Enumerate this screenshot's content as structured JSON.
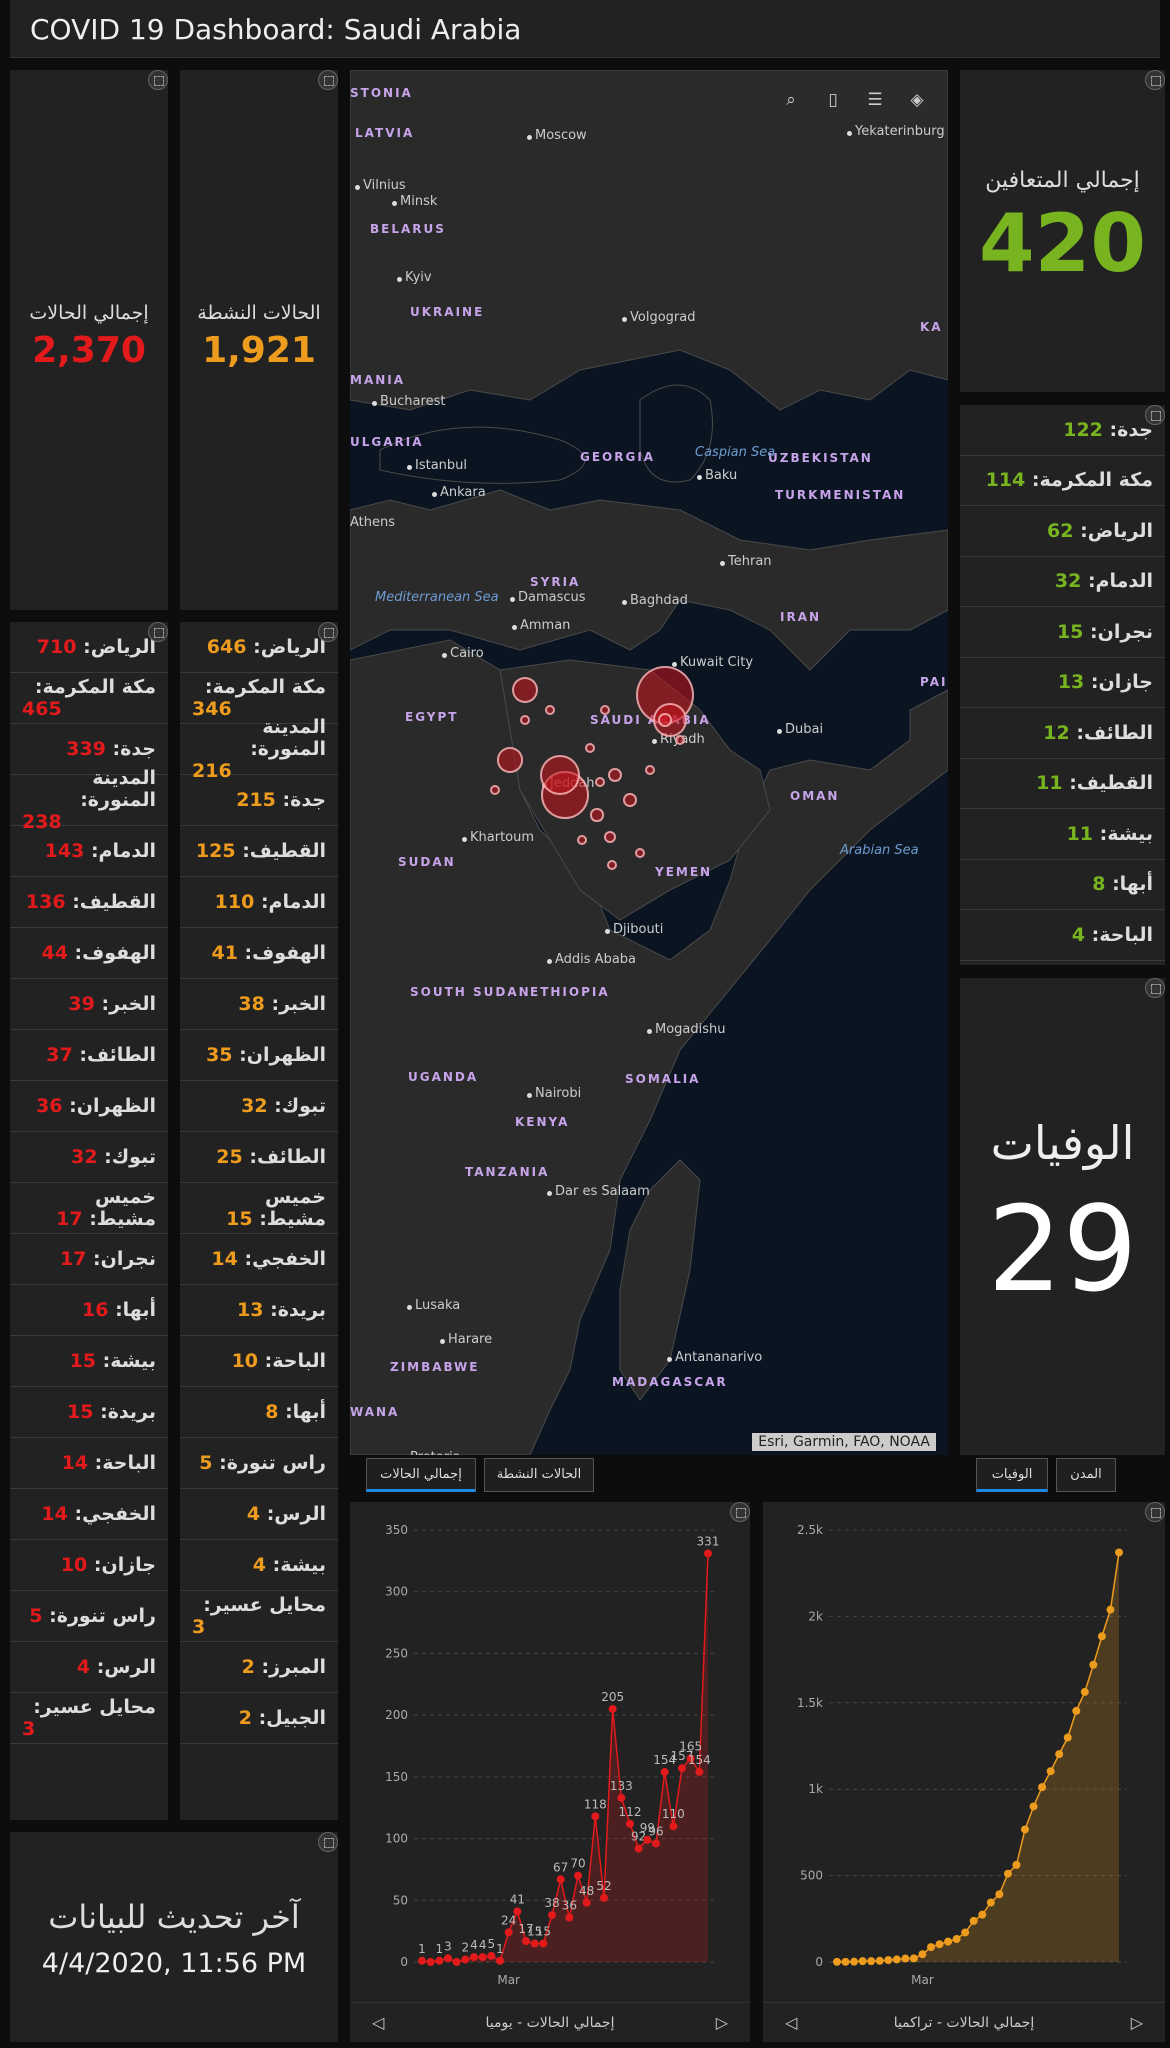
{
  "header": {
    "title": "COVID 19 Dashboard: Saudi Arabia"
  },
  "kpis": {
    "total_cases": {
      "label": "إجمالي الحالات",
      "value": "2,370"
    },
    "active_cases": {
      "label": "الحالات النشطة",
      "value": "1,921"
    },
    "recovered": {
      "label": "إجمالي المتعافين",
      "value": "420"
    },
    "deaths": {
      "label": "الوفيات",
      "value": "29"
    }
  },
  "colors": {
    "total": "#e31a1c",
    "active": "#ee9c1d",
    "recovered": "#78b41f",
    "background": "#222222"
  },
  "total_by_city": [
    {
      "name": "الرياض:",
      "value": "710"
    },
    {
      "name": "مكة المكرمة:",
      "value": "465"
    },
    {
      "name": "جدة:",
      "value": "339"
    },
    {
      "name": "المدينة المنورة:",
      "value": "238"
    },
    {
      "name": "الدمام:",
      "value": "143"
    },
    {
      "name": "القطيف:",
      "value": "136"
    },
    {
      "name": "الهفوف:",
      "value": "44"
    },
    {
      "name": "الخبر:",
      "value": "39"
    },
    {
      "name": "الطائف:",
      "value": "37"
    },
    {
      "name": "الظهران:",
      "value": "36"
    },
    {
      "name": "تبوك:",
      "value": "32"
    },
    {
      "name": "خميس مشيط:",
      "value": "17"
    },
    {
      "name": "نجران:",
      "value": "17"
    },
    {
      "name": "أبها:",
      "value": "16"
    },
    {
      "name": "بيشة:",
      "value": "15"
    },
    {
      "name": "بريدة:",
      "value": "15"
    },
    {
      "name": "الباحة:",
      "value": "14"
    },
    {
      "name": "الخفجي:",
      "value": "14"
    },
    {
      "name": "جازان:",
      "value": "10"
    },
    {
      "name": "راس تنورة:",
      "value": "5"
    },
    {
      "name": "الرس:",
      "value": "4"
    },
    {
      "name": "محايل عسير:",
      "value": "3"
    }
  ],
  "active_by_city": [
    {
      "name": "الرياض:",
      "value": "646"
    },
    {
      "name": "مكة المكرمة:",
      "value": "346"
    },
    {
      "name": "المدينة المنورة:",
      "value": "216"
    },
    {
      "name": "جدة:",
      "value": "215"
    },
    {
      "name": "القطيف:",
      "value": "125"
    },
    {
      "name": "الدمام:",
      "value": "110"
    },
    {
      "name": "الهفوف:",
      "value": "41"
    },
    {
      "name": "الخبر:",
      "value": "38"
    },
    {
      "name": "الظهران:",
      "value": "35"
    },
    {
      "name": "تبوك:",
      "value": "32"
    },
    {
      "name": "الطائف:",
      "value": "25"
    },
    {
      "name": "خميس مشيط:",
      "value": "15"
    },
    {
      "name": "الخفجي:",
      "value": "14"
    },
    {
      "name": "بريدة:",
      "value": "13"
    },
    {
      "name": "الباحة:",
      "value": "10"
    },
    {
      "name": "أبها:",
      "value": "8"
    },
    {
      "name": "راس تنورة:",
      "value": "5"
    },
    {
      "name": "الرس:",
      "value": "4"
    },
    {
      "name": "بيشة:",
      "value": "4"
    },
    {
      "name": "محايل عسير:",
      "value": "3"
    },
    {
      "name": "المبرز:",
      "value": "2"
    },
    {
      "name": "الجبيل:",
      "value": "2"
    }
  ],
  "recovered_by_city": [
    {
      "name": "جدة:",
      "value": "122"
    },
    {
      "name": "مكة المكرمة:",
      "value": "114"
    },
    {
      "name": "الرياض:",
      "value": "62"
    },
    {
      "name": "الدمام:",
      "value": "32"
    },
    {
      "name": "نجران:",
      "value": "15"
    },
    {
      "name": "جازان:",
      "value": "13"
    },
    {
      "name": "الطائف:",
      "value": "12"
    },
    {
      "name": "القطيف:",
      "value": "11"
    },
    {
      "name": "بيشة:",
      "value": "11"
    },
    {
      "name": "أبها:",
      "value": "8"
    },
    {
      "name": "الباحة:",
      "value": "4"
    }
  ],
  "last_update": {
    "label": "آخر تحديث للبيانات",
    "value": "4/4/2020, 11:56 PM"
  },
  "map": {
    "attribution": "Esri, Garmin, FAO, NOAA",
    "tools": [
      "search-icon",
      "bookmark-icon",
      "legend-icon",
      "layers-icon"
    ],
    "labels": [
      {
        "text": "Moscow",
        "kind": "city"
      },
      {
        "text": "Yekaterinburg",
        "kind": "city"
      },
      {
        "text": "Vilnius",
        "kind": "city"
      },
      {
        "text": "Minsk",
        "kind": "city"
      },
      {
        "text": "Kyiv",
        "kind": "city"
      },
      {
        "text": "Volgograd",
        "kind": "city"
      },
      {
        "text": "Bucharest",
        "kind": "city"
      },
      {
        "text": "Istanbul",
        "kind": "city"
      },
      {
        "text": "Ankara",
        "kind": "city"
      },
      {
        "text": "Athens",
        "kind": "city"
      },
      {
        "text": "Baku",
        "kind": "city"
      },
      {
        "text": "Tehran",
        "kind": "city"
      },
      {
        "text": "Damascus",
        "kind": "city"
      },
      {
        "text": "Baghdad",
        "kind": "city"
      },
      {
        "text": "Amman",
        "kind": "city"
      },
      {
        "text": "Cairo",
        "kind": "city"
      },
      {
        "text": "Kuwait City",
        "kind": "city"
      },
      {
        "text": "Riyadh",
        "kind": "city"
      },
      {
        "text": "Jeddah",
        "kind": "city"
      },
      {
        "text": "Dubai",
        "kind": "city"
      },
      {
        "text": "Khartoum",
        "kind": "city"
      },
      {
        "text": "Djibouti",
        "kind": "city"
      },
      {
        "text": "Addis Ababa",
        "kind": "city"
      },
      {
        "text": "Mogadishu",
        "kind": "city"
      },
      {
        "text": "Nairobi",
        "kind": "city"
      },
      {
        "text": "Dar es Salaam",
        "kind": "city"
      },
      {
        "text": "Lusaka",
        "kind": "city"
      },
      {
        "text": "Harare",
        "kind": "city"
      },
      {
        "text": "Antananarivo",
        "kind": "city"
      },
      {
        "text": "Pretoria",
        "kind": "city"
      },
      {
        "text": "STONIA",
        "kind": "country"
      },
      {
        "text": "LATVIA",
        "kind": "country"
      },
      {
        "text": "BELARUS",
        "kind": "country"
      },
      {
        "text": "UKRAINE",
        "kind": "country"
      },
      {
        "text": "MANIA",
        "kind": "country"
      },
      {
        "text": "ULGARIA",
        "kind": "country"
      },
      {
        "text": "GEORGIA",
        "kind": "country"
      },
      {
        "text": "UZBEKISTAN",
        "kind": "country"
      },
      {
        "text": "TURKMENISTAN",
        "kind": "country"
      },
      {
        "text": "SYRIA",
        "kind": "country"
      },
      {
        "text": "IRAN",
        "kind": "country"
      },
      {
        "text": "EGYPT",
        "kind": "country"
      },
      {
        "text": "SAUDI ARABIA",
        "kind": "country"
      },
      {
        "text": "OMAN",
        "kind": "country"
      },
      {
        "text": "SUDAN",
        "kind": "country"
      },
      {
        "text": "YEMEN",
        "kind": "country"
      },
      {
        "text": "ETHIOPIA",
        "kind": "country"
      },
      {
        "text": "SOUTH SUDAN",
        "kind": "country"
      },
      {
        "text": "SOMALIA",
        "kind": "country"
      },
      {
        "text": "UGANDA",
        "kind": "country"
      },
      {
        "text": "KENYA",
        "kind": "country"
      },
      {
        "text": "TANZANIA",
        "kind": "country"
      },
      {
        "text": "ZIMBABWE",
        "kind": "country"
      },
      {
        "text": "MADAGASCAR",
        "kind": "country"
      },
      {
        "text": "WANA",
        "kind": "country"
      },
      {
        "text": "KA",
        "kind": "country"
      },
      {
        "text": "PAI",
        "kind": "country"
      },
      {
        "text": "Mediterranean Sea",
        "kind": "sea"
      },
      {
        "text": "Caspian Sea",
        "kind": "sea"
      },
      {
        "text": "Arabian Sea",
        "kind": "sea"
      }
    ]
  },
  "map_tabs": {
    "left": [
      "إجمالي الحالات",
      "الحالات النشطة"
    ],
    "right": [
      "الوفيات",
      "المدن"
    ]
  },
  "chart_data": [
    {
      "type": "area",
      "title": "إجمالي الحالات - يوميا",
      "xlabel": "Mar",
      "ylim": [
        0,
        350
      ],
      "yticks": [
        "0",
        "50",
        "100",
        "150",
        "200",
        "250",
        "300",
        "350"
      ],
      "color": "#e31a1c",
      "values": [
        1,
        0,
        1,
        3,
        0,
        2,
        4,
        4,
        5,
        1,
        24,
        41,
        17,
        15,
        15,
        38,
        67,
        36,
        70,
        48,
        118,
        52,
        205,
        133,
        112,
        92,
        99,
        96,
        154,
        110,
        157,
        165,
        154,
        331
      ],
      "data_labels": [
        "1",
        "",
        "1",
        "3",
        "",
        "2",
        "4",
        "4",
        "5",
        "1",
        "24",
        "41",
        "17",
        "15",
        "15",
        "38",
        "67",
        "36",
        "70",
        "48",
        "118",
        "52",
        "205",
        "133",
        "112",
        "92",
        "99",
        "96",
        "154",
        "110",
        "157",
        "165",
        "154",
        "331"
      ]
    },
    {
      "type": "area",
      "title": "إجمالي الحالات - تراكميا",
      "xlabel": "Mar",
      "ylim": [
        0,
        2500
      ],
      "yticks": [
        "0",
        "500",
        "1k",
        "1.5k",
        "2k",
        "2.5k"
      ],
      "color": "#ee9c1d",
      "values": [
        1,
        1,
        2,
        5,
        5,
        7,
        11,
        15,
        20,
        21,
        45,
        86,
        103,
        118,
        133,
        171,
        238,
        274,
        344,
        392,
        511,
        562,
        767,
        900,
        1012,
        1104,
        1203,
        1299,
        1453,
        1563,
        1720,
        1885,
        2039,
        2370
      ]
    }
  ]
}
